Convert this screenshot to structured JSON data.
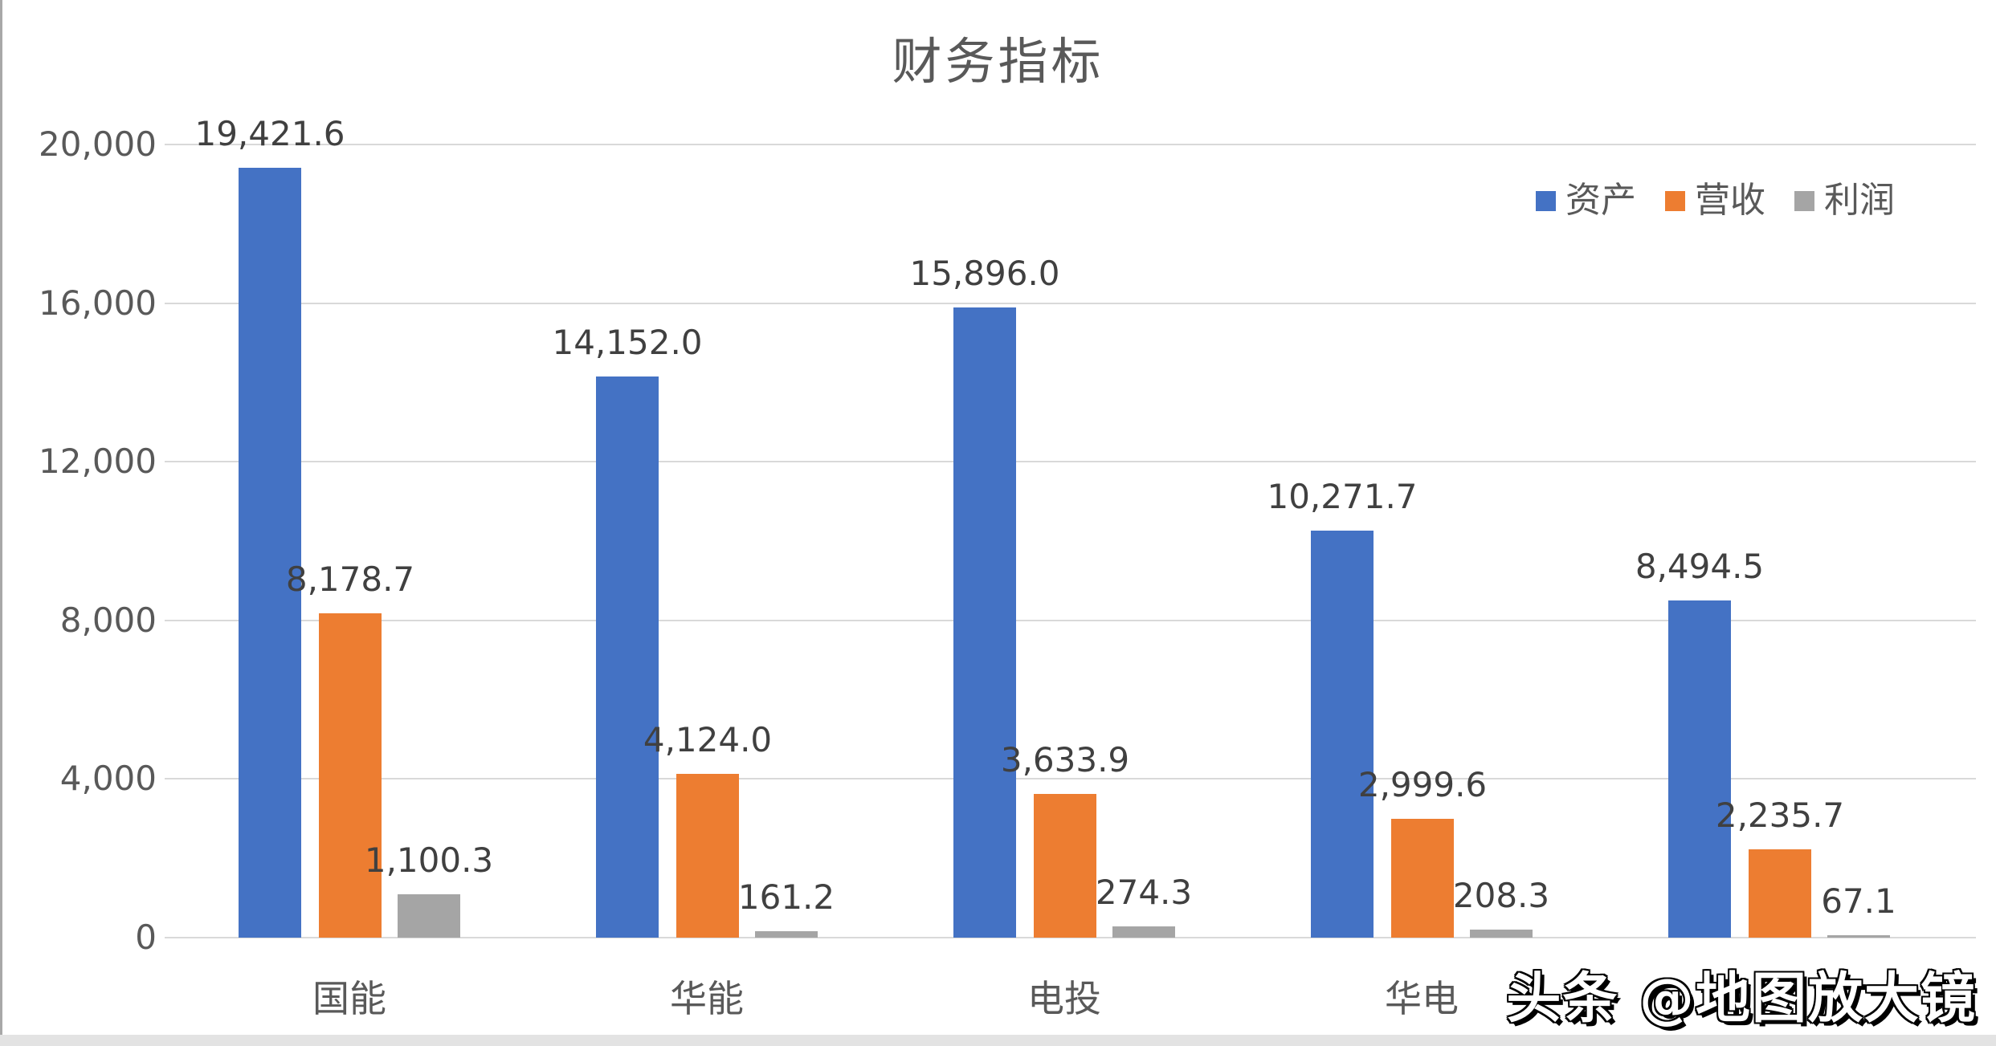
{
  "title": "财务指标",
  "watermark": "头条 @地图放大镜",
  "colors": {
    "series_assets": "#4472C4",
    "series_revenue": "#ED7D31",
    "series_profit": "#A5A5A5",
    "gridline": "#D9D9D9",
    "axis_text": "#595959",
    "value_label_text": "#404040"
  },
  "y_axis": {
    "ticks": [
      "20,000",
      "16,000",
      "12,000",
      "8,000",
      "4,000",
      "0"
    ],
    "min": 0,
    "max": 20000
  },
  "chart_data": {
    "type": "bar",
    "title": "财务指标",
    "categories": [
      "国能",
      "华能",
      "电投",
      "华电",
      ""
    ],
    "series": [
      {
        "name": "资产",
        "key": "assets",
        "color": "#4472C4",
        "values": [
          19421.6,
          14152.0,
          15896.0,
          10271.7,
          8494.5
        ],
        "labels": [
          "19,421.6",
          "14,152.0",
          "15,896.0",
          "10,271.7",
          "8,494.5"
        ]
      },
      {
        "name": "营收",
        "key": "revenue",
        "color": "#ED7D31",
        "values": [
          8178.7,
          4124.0,
          3633.9,
          2999.6,
          2235.7
        ],
        "labels": [
          "8,178.7",
          "4,124.0",
          "3,633.9",
          "2,999.6",
          "2,235.7"
        ]
      },
      {
        "name": "利润",
        "key": "profit",
        "color": "#A5A5A5",
        "values": [
          1100.3,
          161.2,
          274.3,
          208.3,
          67.1
        ],
        "labels": [
          "1,100.3",
          "161.2",
          "274.3",
          "208.3",
          "67.1"
        ]
      }
    ],
    "xlabel": "",
    "ylabel": "",
    "ylim": [
      0,
      20000
    ],
    "grid": true,
    "legend_position": "top-right",
    "data_labels": true
  }
}
